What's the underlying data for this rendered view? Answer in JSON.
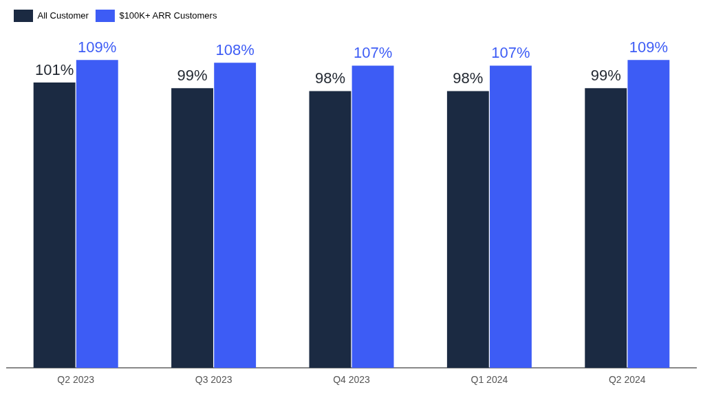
{
  "chart_data": {
    "type": "bar",
    "categories": [
      "Q2 2023",
      "Q3 2023",
      "Q4 2023",
      "Q1 2024",
      "Q2 2024"
    ],
    "series": [
      {
        "name": "All Customer",
        "color": "#1b2a42",
        "values": [
          101,
          99,
          98,
          98,
          99
        ],
        "value_labels": [
          "101%",
          "99%",
          "98%",
          "98%",
          "99%"
        ]
      },
      {
        "name": "$100K+ ARR Customers",
        "color": "#3d5cf5",
        "values": [
          109,
          108,
          107,
          107,
          109
        ],
        "value_labels": [
          "109%",
          "108%",
          "107%",
          "107%",
          "109%"
        ]
      }
    ],
    "tick_labels": "x",
    "grid": false,
    "legend": "top left"
  }
}
